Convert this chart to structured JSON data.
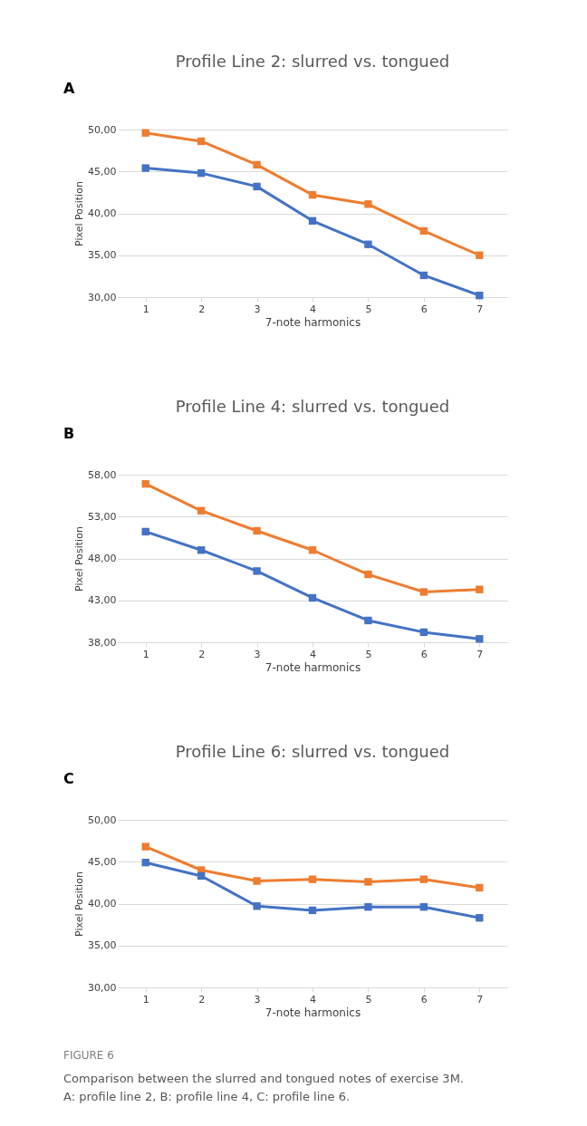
{
  "chart_data": [
    {
      "type": "line",
      "title": "Profile Line 2: slurred vs. tongued",
      "xlabel": "7-note harmonics",
      "ylabel": "Pixel Position",
      "annotations": [
        "A"
      ],
      "categories": [
        "1",
        "2",
        "3",
        "4",
        "5",
        "6",
        "7"
      ],
      "ylim": [
        30,
        50
      ],
      "yticks": [
        {
          "value": 30,
          "label": "30,00"
        },
        {
          "value": 35,
          "label": "35,00"
        },
        {
          "value": 40,
          "label": "40,00"
        },
        {
          "value": 45,
          "label": "45,00"
        },
        {
          "value": 50,
          "label": "50,00"
        }
      ],
      "grid": "y",
      "marker": "square",
      "series": [
        {
          "color": "#ed7d31",
          "values": [
            49.6,
            48.6,
            45.8,
            42.2,
            41.1,
            37.9,
            35.0
          ]
        },
        {
          "color": "#4472c4",
          "values": [
            45.4,
            44.8,
            43.2,
            39.1,
            36.3,
            32.6,
            30.2
          ]
        }
      ]
    },
    {
      "type": "line",
      "title": "Profile Line 4: slurred vs. tongued",
      "xlabel": "7-note harmonics",
      "ylabel": "Pixel Position",
      "annotations": [
        "B"
      ],
      "categories": [
        "1",
        "2",
        "3",
        "4",
        "5",
        "6",
        "7"
      ],
      "ylim": [
        38,
        58
      ],
      "yticks": [
        {
          "value": 38,
          "label": "38,00"
        },
        {
          "value": 43,
          "label": "43,00"
        },
        {
          "value": 48,
          "label": "48,00"
        },
        {
          "value": 53,
          "label": "53,00"
        },
        {
          "value": 58,
          "label": "58,00"
        }
      ],
      "grid": "y",
      "marker": "square",
      "series": [
        {
          "color": "#ed7d31",
          "values": [
            56.9,
            53.7,
            51.3,
            49.0,
            46.1,
            44.0,
            44.3
          ]
        },
        {
          "color": "#4472c4",
          "values": [
            51.2,
            49.0,
            46.5,
            43.3,
            40.6,
            39.2,
            38.4
          ]
        }
      ]
    },
    {
      "type": "line",
      "title": "Profile Line 6: slurred vs. tongued",
      "xlabel": "7-note harmonics",
      "ylabel": "Pixel Position",
      "annotations": [
        "C",
        "FIGURE 6",
        "Comparison between the slurred and tongued notes of exercise 3M.",
        "A: profile line 2, B: profile line 4, C: profile line 6."
      ],
      "categories": [
        "1",
        "2",
        "3",
        "4",
        "5",
        "6",
        "7"
      ],
      "ylim": [
        30,
        50
      ],
      "yticks": [
        {
          "value": 30,
          "label": "30,00"
        },
        {
          "value": 35,
          "label": "35,00"
        },
        {
          "value": 40,
          "label": "40,00"
        },
        {
          "value": 45,
          "label": "45,00"
        },
        {
          "value": 50,
          "label": "50,00"
        }
      ],
      "grid": "y",
      "marker": "square",
      "series": [
        {
          "color": "#ed7d31",
          "values": [
            46.8,
            44.0,
            42.7,
            42.9,
            42.6,
            42.9,
            41.9
          ]
        },
        {
          "color": "#4472c4",
          "values": [
            44.9,
            43.3,
            39.7,
            39.2,
            39.6,
            39.6,
            38.3
          ]
        }
      ]
    }
  ]
}
